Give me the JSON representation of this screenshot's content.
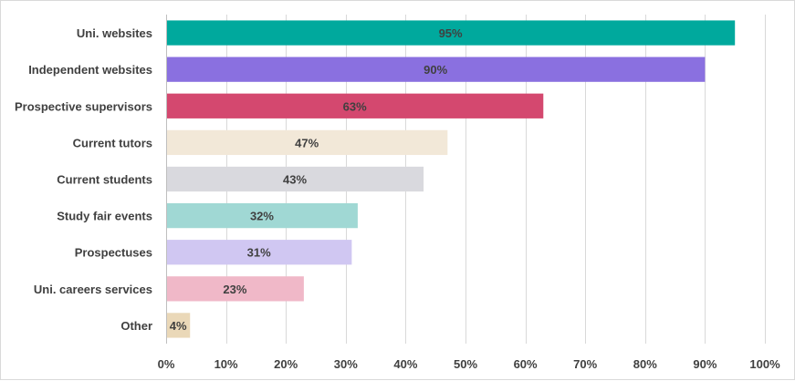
{
  "chart_data": {
    "type": "bar",
    "orientation": "horizontal",
    "categories": [
      "Uni. websites",
      "Independent websites",
      "Prospective supervisors",
      "Current tutors",
      "Current students",
      "Study fair events",
      "Prospectuses",
      "Uni. careers services",
      "Other"
    ],
    "values": [
      95,
      90,
      63,
      47,
      43,
      32,
      31,
      23,
      4
    ],
    "data_labels": [
      "95%",
      "90%",
      "63%",
      "47%",
      "43%",
      "32%",
      "31%",
      "23%",
      "4%"
    ],
    "bar_colors": [
      "#00a99d",
      "#8a70e0",
      "#d4486f",
      "#f2e8d8",
      "#d9d9de",
      "#a0d8d4",
      "#d0c7f2",
      "#f0b8c8",
      "#ead8b8"
    ],
    "xlim": [
      0,
      100
    ],
    "x_ticks": [
      0,
      10,
      20,
      30,
      40,
      50,
      60,
      70,
      80,
      90,
      100
    ],
    "x_tick_labels": [
      "0%",
      "10%",
      "20%",
      "30%",
      "40%",
      "50%",
      "60%",
      "70%",
      "80%",
      "90%",
      "100%"
    ],
    "grid": true,
    "title": "",
    "xlabel": "",
    "ylabel": ""
  }
}
